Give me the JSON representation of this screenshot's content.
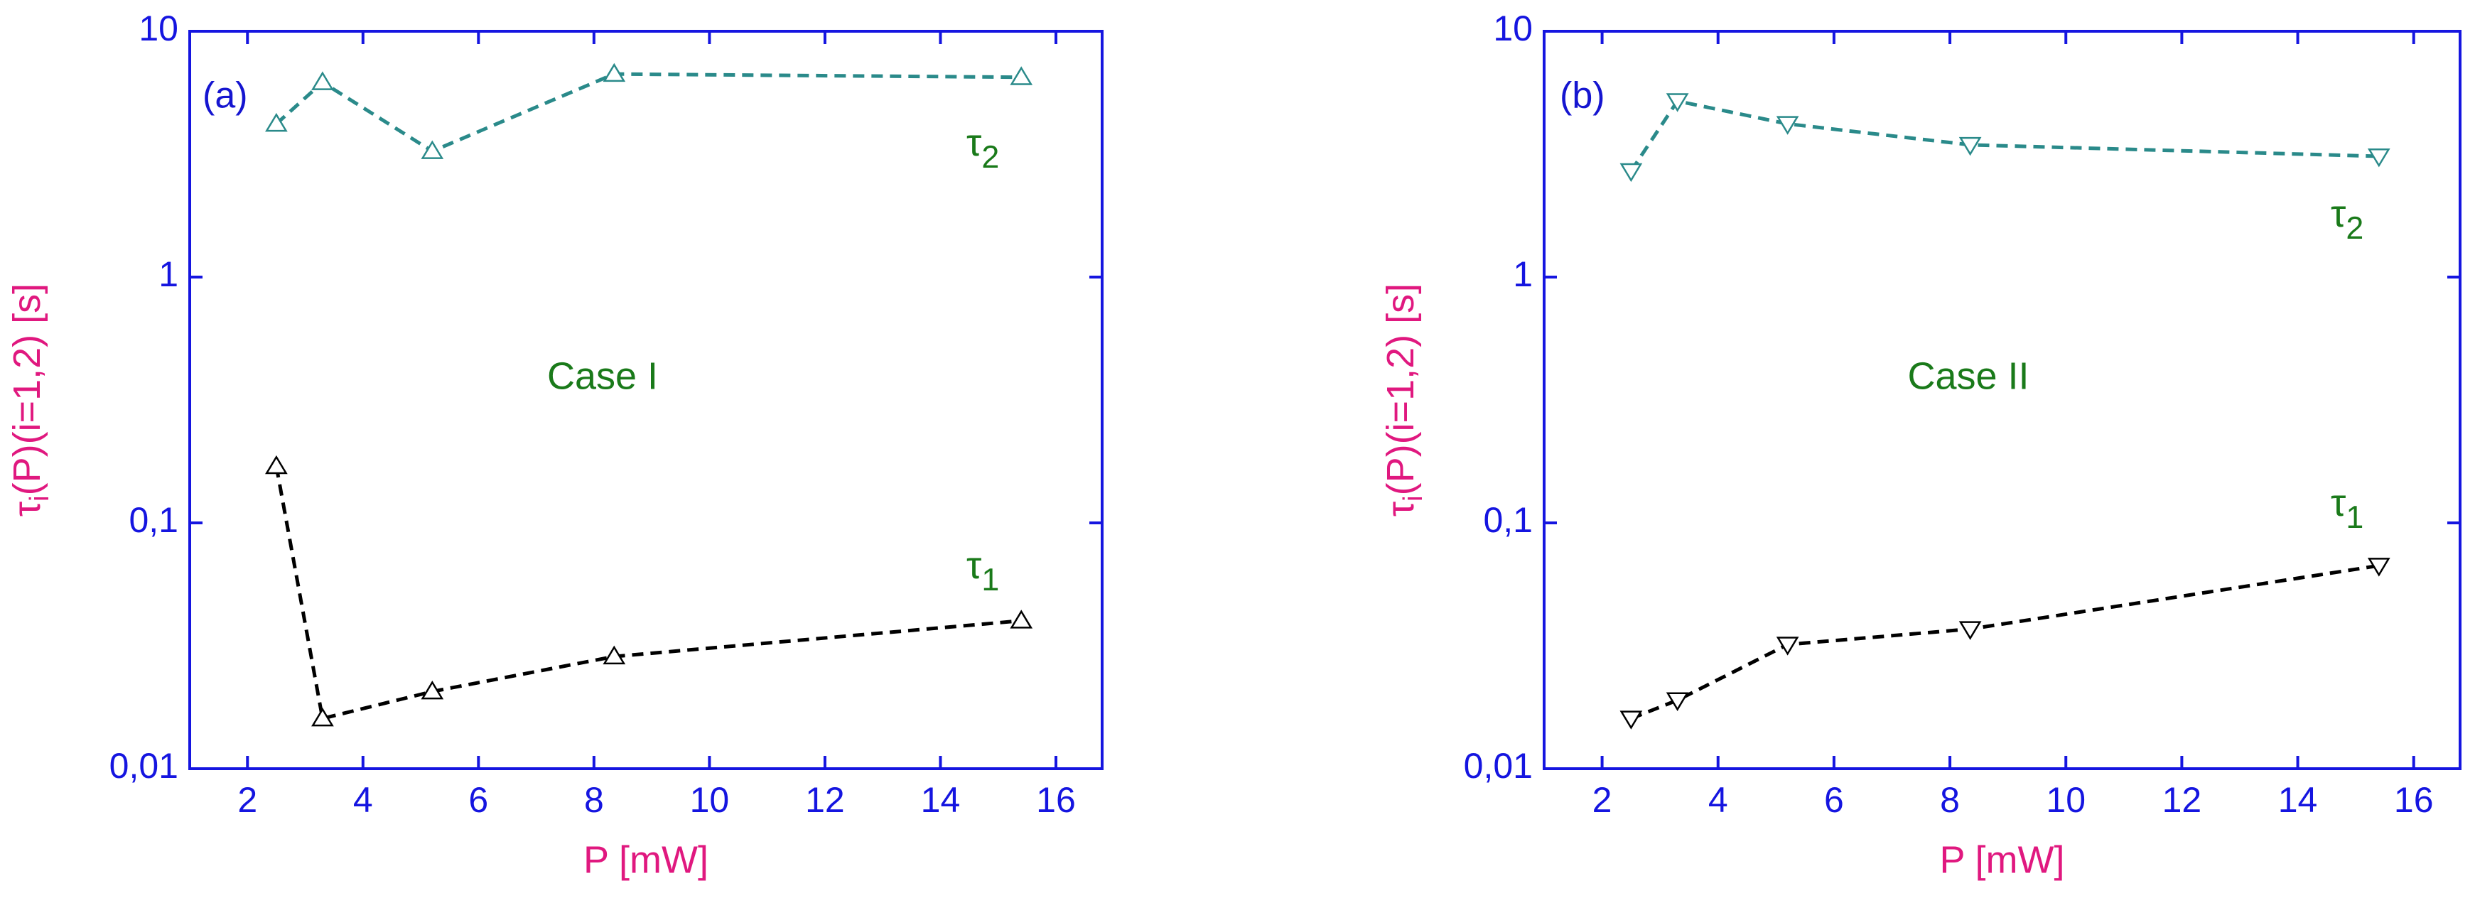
{
  "chart_data": [
    {
      "type": "line",
      "marker": "triangle-up",
      "log_y": true,
      "xlabel": "P [mW]",
      "ylabel": "τi(P)(i=1,2) [s]",
      "annotations": [
        "(a)",
        "Case I"
      ],
      "x": [
        2.5,
        3.3,
        5.2,
        8.35,
        15.4
      ],
      "series": [
        {
          "name": "τ2",
          "color": "#2a8a8a",
          "values": [
            4.2,
            6.2,
            3.25,
            6.7,
            6.5
          ]
        },
        {
          "name": "τ1",
          "color": "#000000",
          "values": [
            0.17,
            0.016,
            0.0206,
            0.0286,
            0.04
          ]
        }
      ],
      "xlim": [
        1,
        16.8
      ],
      "xticks": [
        2,
        4,
        6,
        8,
        10,
        12,
        14,
        16
      ],
      "ylim": [
        0.01,
        10
      ],
      "yticks": [
        {
          "value": 0.01,
          "label": "0,01"
        },
        {
          "value": 0.1,
          "label": "0,1"
        },
        1,
        10
      ],
      "axis_color": "#1515e0"
    },
    {
      "type": "line",
      "marker": "triangle-down",
      "log_y": true,
      "xlabel": "P [mW]",
      "ylabel": "τi(P)(i=1,2) [s]",
      "annotations": [
        "(b)",
        "Case II"
      ],
      "x": [
        2.5,
        3.3,
        5.2,
        8.35,
        15.4
      ],
      "series": [
        {
          "name": "τ2",
          "color": "#2a8a8a",
          "values": [
            2.7,
            5.2,
            4.2,
            3.45,
            3.1
          ]
        },
        {
          "name": "τ1",
          "color": "#000000",
          "values": [
            0.016,
            0.019,
            0.032,
            0.037,
            0.067
          ]
        }
      ],
      "xlim": [
        1,
        16.8
      ],
      "xticks": [
        2,
        4,
        6,
        8,
        10,
        12,
        14,
        16
      ],
      "ylim": [
        0.01,
        10
      ],
      "yticks": [
        {
          "value": 0.01,
          "label": "0,01"
        },
        {
          "value": 0.1,
          "label": "0,1"
        },
        1,
        10
      ],
      "axis_color": "#1515e0"
    }
  ]
}
